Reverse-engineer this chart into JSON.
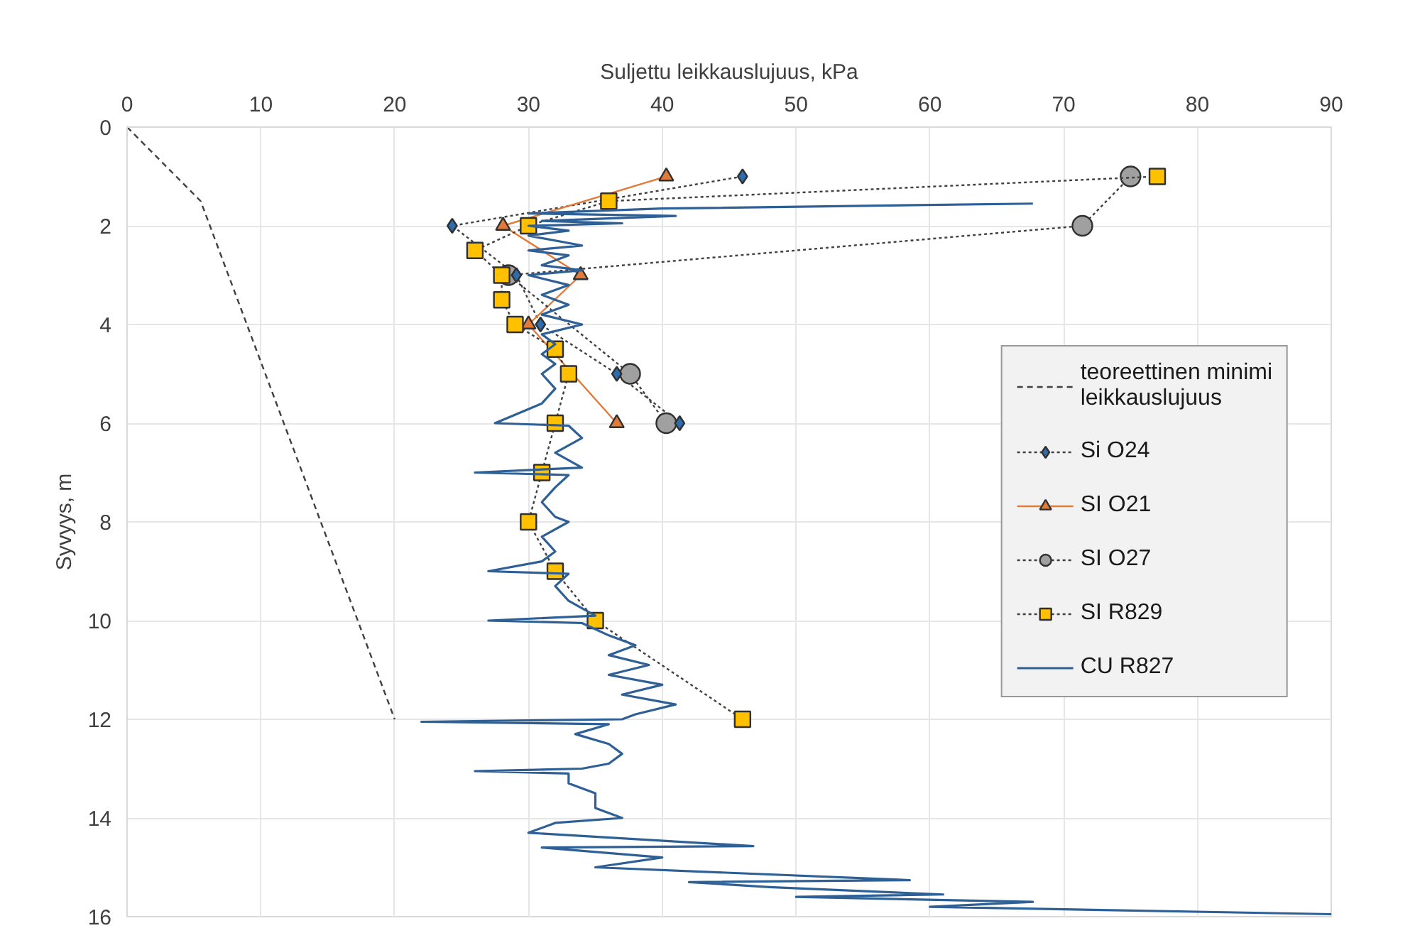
{
  "chart_data": {
    "type": "line",
    "xlabel": "Suljettu leikkauslujuus, kPa",
    "ylabel": "Syvyys, m",
    "xlim": [
      0,
      90
    ],
    "xticks": [
      0,
      10,
      20,
      30,
      40,
      50,
      60,
      70,
      80,
      90
    ],
    "ylim": [
      16,
      0
    ],
    "yticks": [
      0,
      2,
      4,
      6,
      8,
      10,
      12,
      14,
      16
    ],
    "grid": true,
    "legend": "right",
    "series": [
      {
        "name": "teoreettinen minimi leikkauslujuus",
        "color": "#404040",
        "marker": "none",
        "line_style": "dashed",
        "x": [
          0,
          5.5,
          20
        ],
        "values": [
          0,
          1.5,
          12
        ]
      },
      {
        "name": "Si O24",
        "color": "#2e6dad",
        "marker": "diamond",
        "line_style": "dotted",
        "x": [
          46,
          24.3,
          29.1,
          30.9,
          36.6,
          41.3
        ],
        "values": [
          1,
          2,
          3,
          4,
          5,
          6
        ]
      },
      {
        "name": "SI O21",
        "color": "#e07b39",
        "marker": "triangle",
        "line_style": "solid",
        "x": [
          40.3,
          28.1,
          33.9,
          30,
          36.6
        ],
        "values": [
          1,
          2,
          3,
          4,
          6
        ]
      },
      {
        "name": "SI O27",
        "color": "#a0a0a0",
        "marker": "circle",
        "line_style": "dotted",
        "x": [
          75,
          71.4,
          28.5,
          37.6,
          40.3
        ],
        "values": [
          1,
          2,
          3,
          5,
          6
        ]
      },
      {
        "name": "SI R829",
        "color": "#ffc000",
        "marker": "square",
        "line_style": "dotted",
        "x": [
          77,
          36,
          30,
          26,
          28,
          28,
          29,
          32,
          33,
          32,
          31,
          30,
          32,
          35,
          46
        ],
        "values": [
          1,
          1.5,
          2,
          2.5,
          3,
          3.5,
          4,
          4.5,
          5,
          6,
          7,
          8,
          9,
          10,
          12
        ]
      },
      {
        "name": "CU R827",
        "color": "#2e5f95",
        "marker": "none",
        "line_style": "solid",
        "x": [
          67.7,
          40,
          30,
          41,
          31,
          37,
          30,
          33,
          30,
          34,
          30,
          33,
          31,
          34,
          30,
          33,
          31,
          33,
          31,
          34,
          31,
          32,
          31,
          32,
          31,
          32,
          31,
          27.5,
          33,
          34,
          32,
          34,
          26,
          33,
          32,
          31,
          32,
          33,
          31,
          32,
          31,
          27,
          33,
          32,
          33,
          35,
          27,
          34,
          36,
          38,
          36,
          39,
          36,
          40,
          37,
          41,
          38,
          37,
          22,
          36,
          33.5,
          36,
          37,
          36,
          34,
          26,
          33,
          33,
          35,
          35,
          37,
          32,
          30,
          46.8,
          31,
          40,
          35,
          58.5,
          42,
          48,
          61,
          50,
          67.7,
          60,
          90
        ],
        "values": [
          1.55,
          1.65,
          1.75,
          1.8,
          1.9,
          1.95,
          2.0,
          2.1,
          2.2,
          2.4,
          2.5,
          2.6,
          2.8,
          2.9,
          3.0,
          3.2,
          3.4,
          3.6,
          3.8,
          4.0,
          4.2,
          4.4,
          4.6,
          4.8,
          5.0,
          5.3,
          5.6,
          6.0,
          6.05,
          6.3,
          6.6,
          6.9,
          7.0,
          7.05,
          7.3,
          7.6,
          7.9,
          8.0,
          8.3,
          8.6,
          8.8,
          9.0,
          9.05,
          9.3,
          9.6,
          9.9,
          10.0,
          10.05,
          10.3,
          10.5,
          10.7,
          10.9,
          11.1,
          11.3,
          11.5,
          11.7,
          11.9,
          12.0,
          12.05,
          12.1,
          12.3,
          12.5,
          12.7,
          12.9,
          13.0,
          13.05,
          13.1,
          13.3,
          13.5,
          13.8,
          14.0,
          14.1,
          14.3,
          14.57,
          14.6,
          14.8,
          15.0,
          15.26,
          15.3,
          15.4,
          15.55,
          15.6,
          15.7,
          15.8,
          15.95
        ]
      }
    ]
  }
}
